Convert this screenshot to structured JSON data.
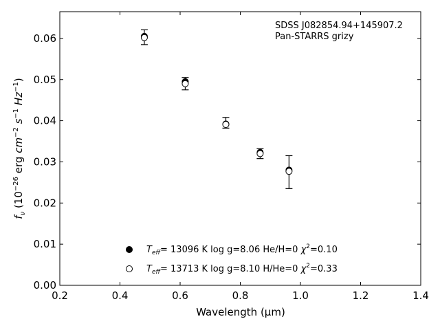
{
  "chart_data": {
    "type": "scatter",
    "xlabel": "Wavelength (μm)",
    "ylabel_parts": {
      "f": "f",
      "nu": "ν",
      "open": " (10",
      "exp26": "−26",
      "erg": " erg ",
      "cm": "cm",
      "exp2": "−2",
      "s": " s",
      "exp1": "−1",
      "hz": " Hz",
      "close": ")"
    },
    "xlim": [
      0.2,
      1.4
    ],
    "ylim": [
      0.0,
      0.0665
    ],
    "xticks": [
      0.2,
      0.4,
      0.6,
      0.8,
      1.0,
      1.2,
      1.4
    ],
    "xtick_labels": [
      "0.2",
      "0.4",
      "0.6",
      "0.8",
      "1.0",
      "1.2",
      "1.4"
    ],
    "yticks": [
      0.0,
      0.01,
      0.02,
      0.03,
      0.04,
      0.05,
      0.06
    ],
    "ytick_labels": [
      "0.00",
      "0.01",
      "0.02",
      "0.03",
      "0.04",
      "0.05",
      "0.06"
    ],
    "grid": false,
    "annotation_lines": [
      "SDSS J082854.94+145907.2",
      "Pan-STARRS grizy"
    ],
    "observed": {
      "x": [
        0.481,
        0.617,
        0.752,
        0.866,
        0.962
      ],
      "y": [
        0.0603,
        0.049,
        0.0395,
        0.032,
        0.0275
      ],
      "err": [
        0.0018,
        0.0015,
        0.0013,
        0.0012,
        0.004
      ]
    },
    "series": [
      {
        "marker": "filled",
        "color": "#000000",
        "x": [
          0.481,
          0.617,
          0.752,
          0.866,
          0.962
        ],
        "y": [
          0.0605,
          0.0495,
          0.0392,
          0.0323,
          0.028
        ],
        "legend": {
          "t": "T",
          "sub": "eff",
          "text": "= 13096 K  log g=8.06  He/H=0  ",
          "chi": "χ",
          "sup": "2",
          "tail": "=0.10"
        }
      },
      {
        "marker": "open",
        "color": "#000000",
        "x": [
          0.481,
          0.617,
          0.752,
          0.866,
          0.962
        ],
        "y": [
          0.0602,
          0.049,
          0.0391,
          0.032,
          0.0277
        ],
        "legend": {
          "t": "T",
          "sub": "eff",
          "text": "= 13713 K  log g=8.10  H/He=0  ",
          "chi": "χ",
          "sup": "2",
          "tail": "=0.33"
        }
      }
    ]
  }
}
